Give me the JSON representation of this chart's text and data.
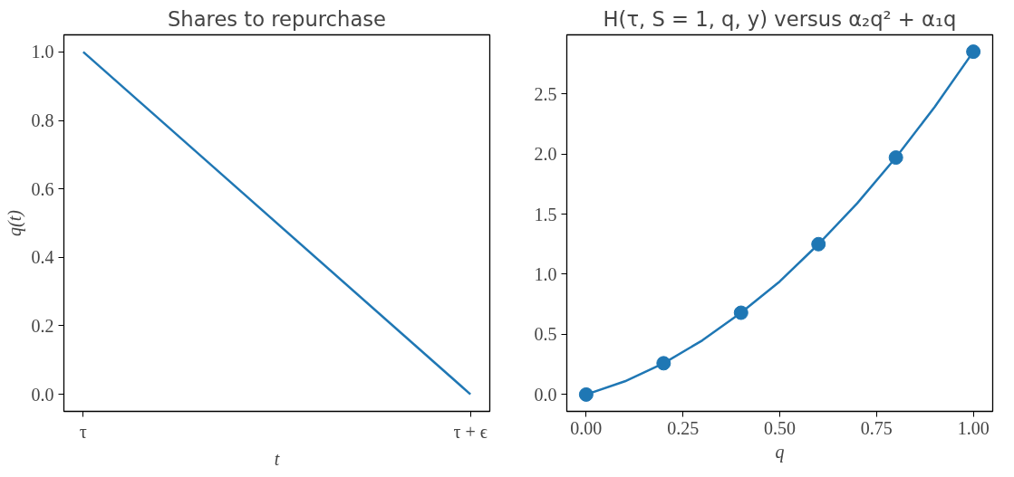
{
  "chart_data": [
    {
      "type": "line",
      "title": "Shares to repurchase",
      "xlabel": "t",
      "ylabel": "q(t)",
      "ylim": [
        -0.05,
        1.05
      ],
      "categories": [
        "τ",
        "τ + ϵ"
      ],
      "yticks": [
        {
          "value": 0,
          "label": "0.0"
        },
        0.2,
        0.4,
        0.6,
        0.8,
        {
          "value": 1,
          "label": "1.0"
        }
      ],
      "grid": false,
      "series": [
        {
          "color": "#1f77b4",
          "values": [
            1.0,
            0.0
          ]
        }
      ]
    },
    {
      "type": "line",
      "title": "H(τ, S = 1, q, y) versus α₂q² + α₁q",
      "xlabel": "q",
      "xlim": [
        -0.05,
        1.05
      ],
      "ylim": [
        -0.14,
        2.99
      ],
      "xticks": [
        {
          "value": 0,
          "label": "0.00"
        },
        {
          "value": 0.25,
          "label": "0.25"
        },
        {
          "value": 0.5,
          "label": "0.50"
        },
        {
          "value": 0.75,
          "label": "0.75"
        },
        {
          "value": 1,
          "label": "1.00"
        }
      ],
      "yticks": [
        {
          "value": 0,
          "label": "0.0"
        },
        {
          "value": 0.5,
          "label": "0.5"
        },
        {
          "value": 1,
          "label": "1.0"
        },
        {
          "value": 1.5,
          "label": "1.5"
        },
        {
          "value": 2,
          "label": "2.0"
        },
        {
          "value": 2.5,
          "label": "2.5"
        }
      ],
      "grid": false,
      "series": [
        {
          "type": "line",
          "color": "#1f77b4",
          "x": [
            0,
            0.1,
            0.2,
            0.3,
            0.4,
            0.5,
            0.6,
            0.7,
            0.8,
            0.9,
            1.0
          ],
          "values": [
            0,
            0.11,
            0.26,
            0.45,
            0.68,
            0.94,
            1.25,
            1.59,
            1.97,
            2.39,
            2.85
          ]
        },
        {
          "type": "scatter",
          "marker": "circle",
          "color": "#1f77b4",
          "x": [
            0,
            0.2,
            0.4,
            0.6,
            0.8,
            1.0
          ],
          "values": [
            0,
            0.26,
            0.68,
            1.25,
            1.97,
            2.85
          ]
        }
      ]
    }
  ]
}
